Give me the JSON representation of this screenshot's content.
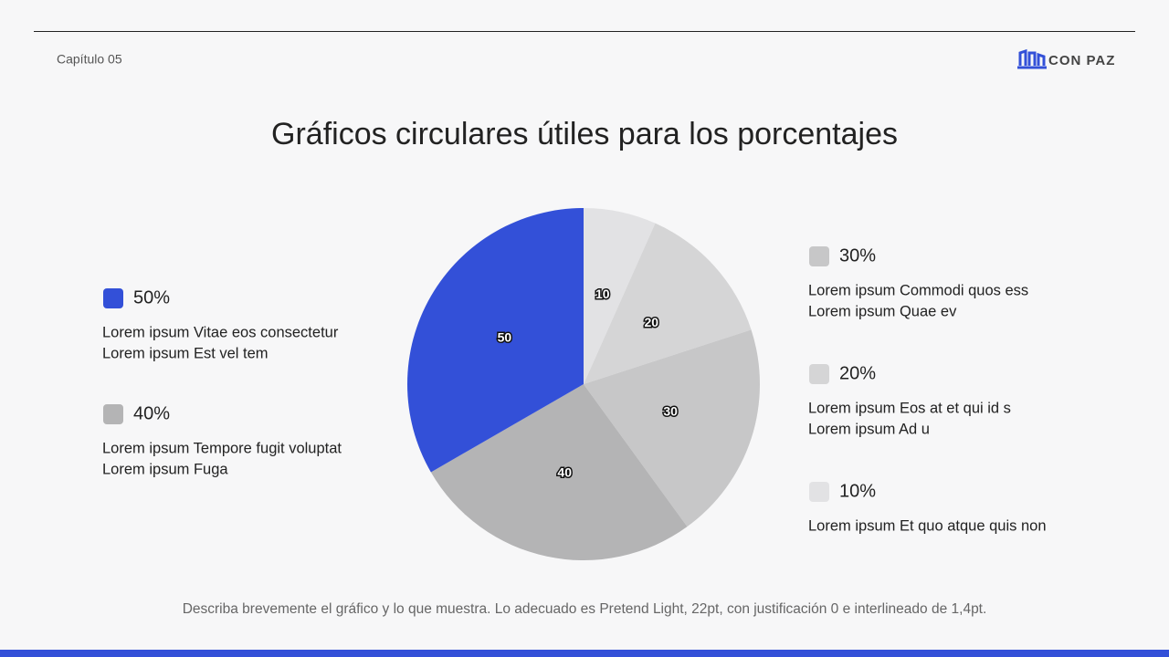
{
  "header": {
    "chapter": "Capítulo 05",
    "brand": "CON PAZ"
  },
  "chart_data": {
    "type": "pie",
    "title": "Gráficos circulares útiles para los porcentajes",
    "values": [
      10,
      20,
      30,
      40,
      50
    ],
    "value_labels": [
      "10%",
      "20%",
      "30%",
      "40%",
      "50%"
    ],
    "colors": [
      "#e2e2e4",
      "#d5d5d6",
      "#c7c7c8",
      "#b4b4b5",
      "#3350d8"
    ],
    "descriptions": [
      [
        "Lorem ipsum Et quo atque quis non"
      ],
      [
        "Lorem ipsum Eos at et qui id s",
        "Lorem ipsum Ad u"
      ],
      [
        "Lorem ipsum Commodi quos ess",
        "Lorem ipsum Quae ev"
      ],
      [
        "Lorem ipsum Tempore fugit voluptat",
        "Lorem ipsum Fuga"
      ],
      [
        "Lorem ipsum Vitae eos consectetur",
        "Lorem ipsum Est vel tem"
      ]
    ],
    "caption": "Describa brevemente el gráfico y lo que muestra. Lo adecuado es Pretend Light, 22pt, con justificación 0 e interlineado de 1,4pt."
  }
}
